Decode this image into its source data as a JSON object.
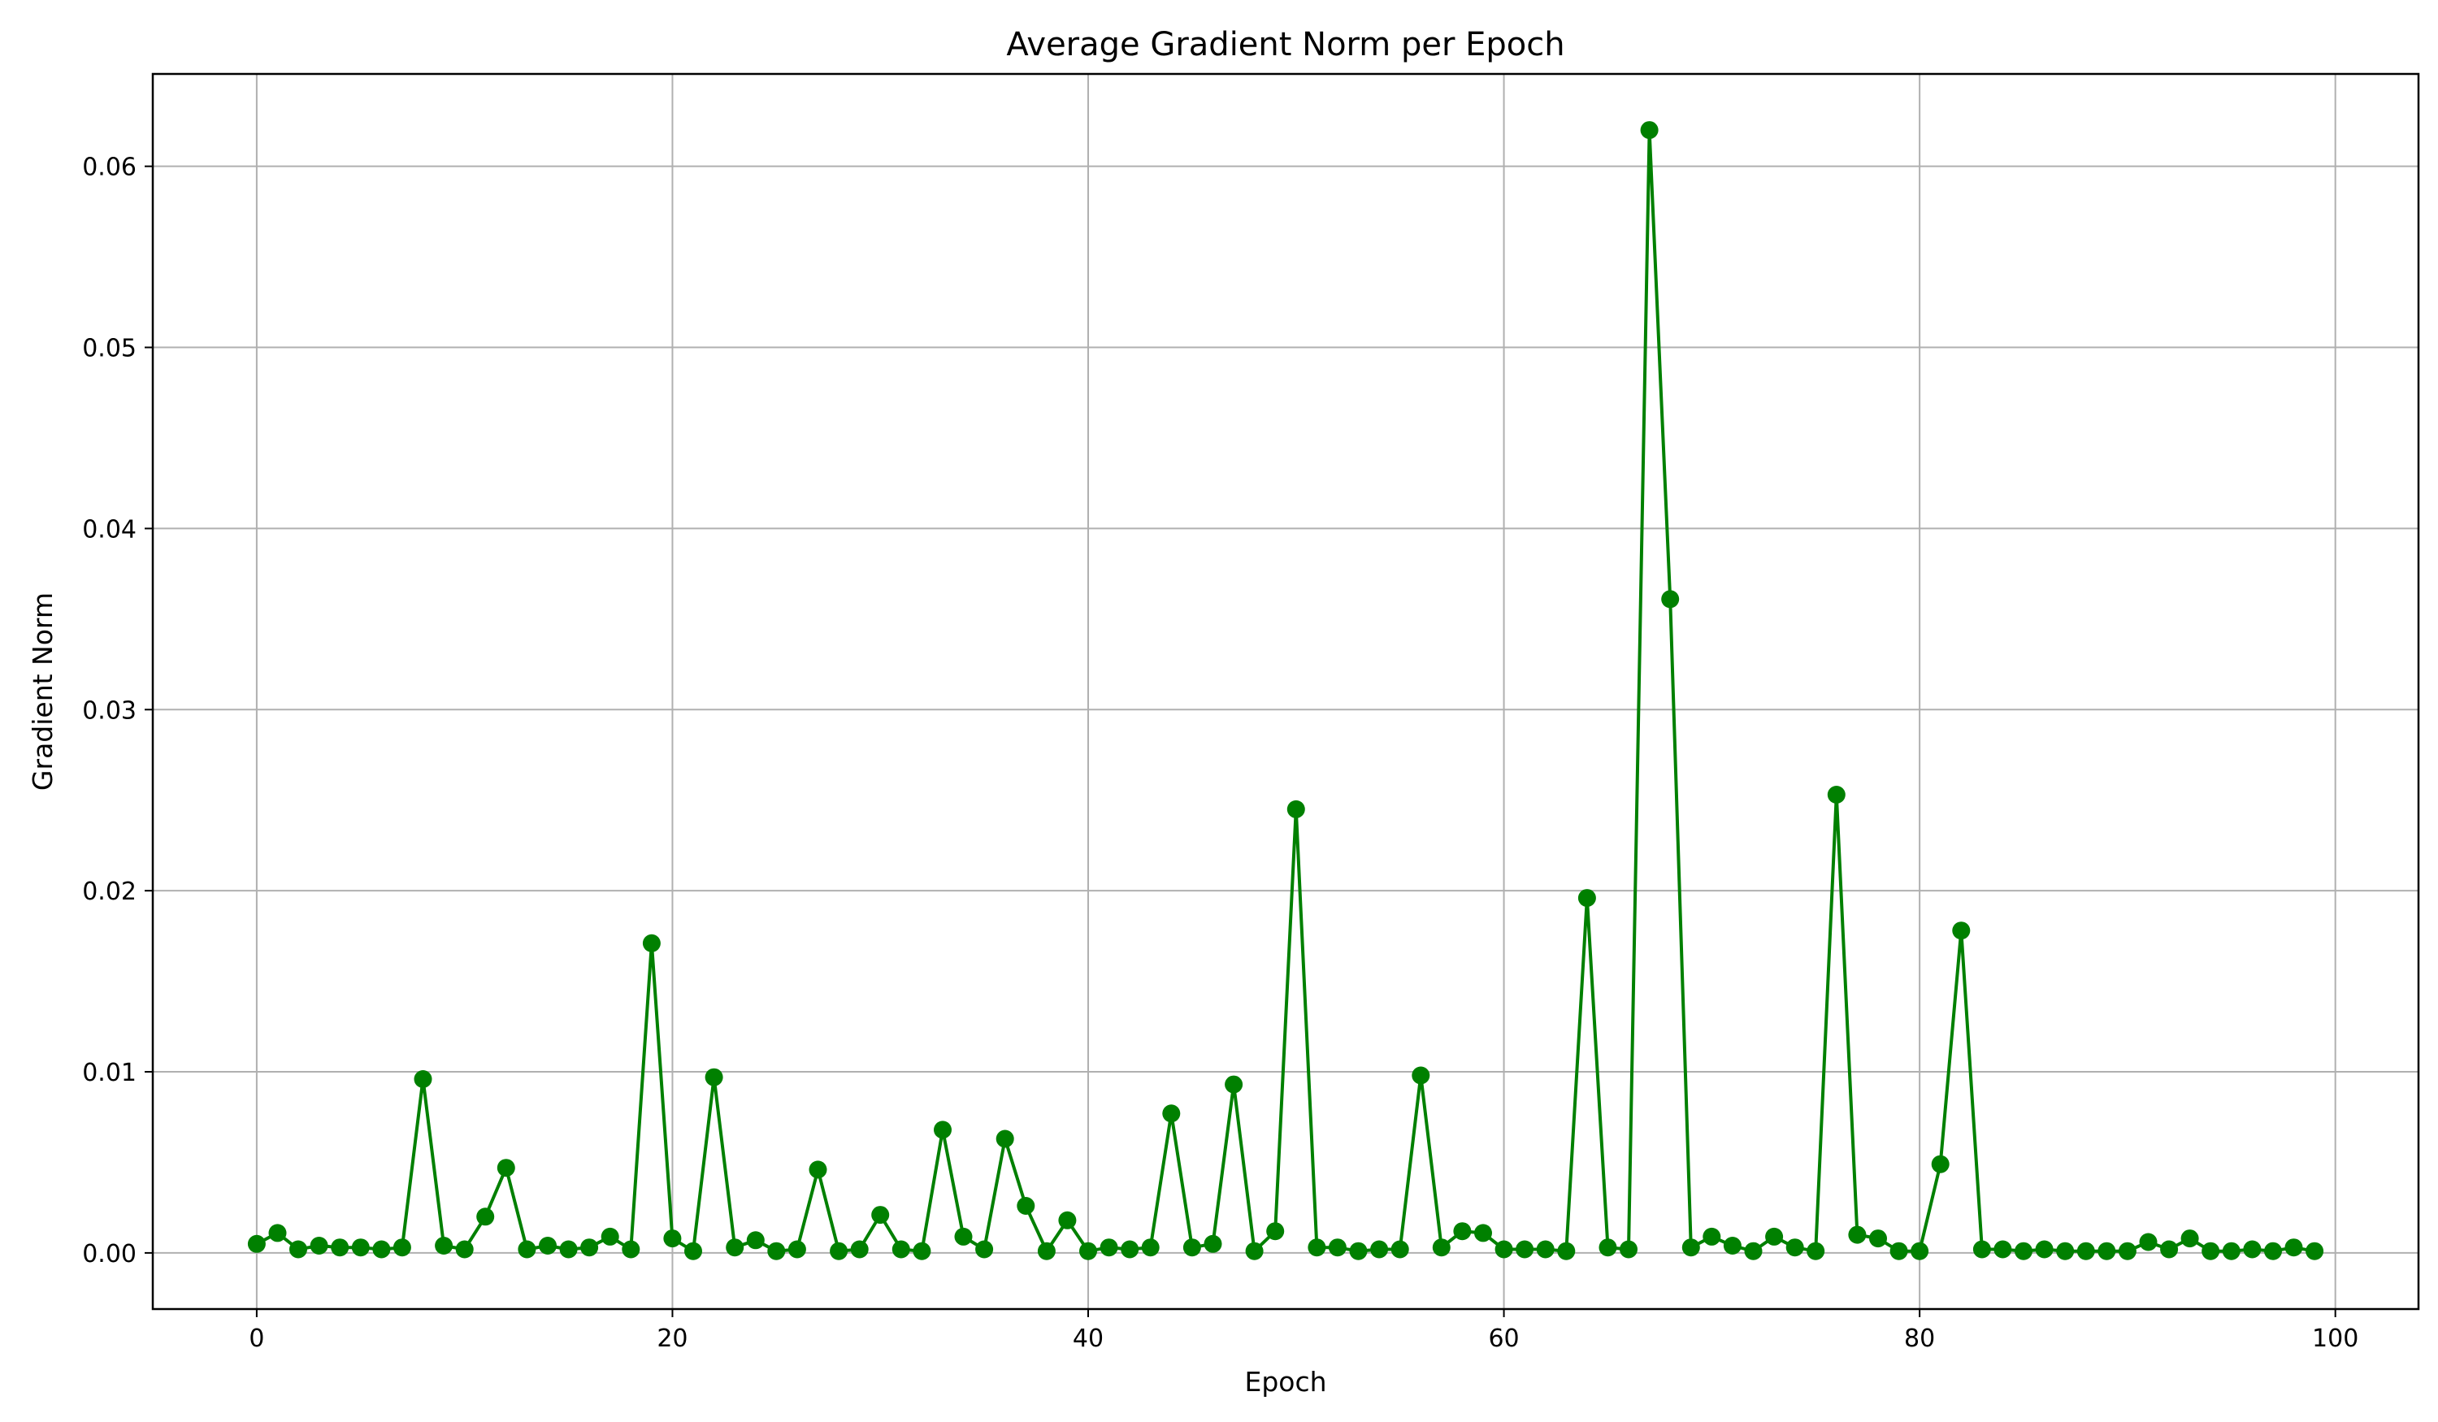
{
  "chart_data": {
    "type": "line",
    "title": "Average Gradient Norm per Epoch",
    "xlabel": "Epoch",
    "ylabel": "Gradient Norm",
    "xlim": [
      -5,
      104
    ],
    "ylim": [
      -0.0031,
      0.0651
    ],
    "xticks": [
      0,
      20,
      40,
      60,
      80,
      100
    ],
    "xtick_labels": [
      "0",
      "20",
      "40",
      "60",
      "80",
      "100"
    ],
    "yticks": [
      0.0,
      0.01,
      0.02,
      0.03,
      0.04,
      0.05,
      0.06
    ],
    "ytick_labels": [
      "0.00",
      "0.01",
      "0.02",
      "0.03",
      "0.04",
      "0.05",
      "0.06"
    ],
    "grid": true,
    "marker": "circle",
    "color": "#008000",
    "x": [
      0,
      1,
      2,
      3,
      4,
      5,
      6,
      7,
      8,
      9,
      10,
      11,
      12,
      13,
      14,
      15,
      16,
      17,
      18,
      19,
      20,
      21,
      22,
      23,
      24,
      25,
      26,
      27,
      28,
      29,
      30,
      31,
      32,
      33,
      34,
      35,
      36,
      37,
      38,
      39,
      40,
      41,
      42,
      43,
      44,
      45,
      46,
      47,
      48,
      49,
      50,
      51,
      52,
      53,
      54,
      55,
      56,
      57,
      58,
      59,
      60,
      61,
      62,
      63,
      64,
      65,
      66,
      67,
      68,
      69,
      70,
      71,
      72,
      73,
      74,
      75,
      76,
      77,
      78,
      79,
      80,
      81,
      82,
      83,
      84,
      85,
      86,
      87,
      88,
      89,
      90,
      91,
      92,
      93,
      94,
      95,
      96,
      97,
      98,
      99
    ],
    "y": [
      0.0005,
      0.0011,
      0.0002,
      0.0004,
      0.0003,
      0.0003,
      0.0002,
      0.0003,
      0.0096,
      0.0004,
      0.0002,
      0.002,
      0.0047,
      0.0002,
      0.0004,
      0.0002,
      0.0003,
      0.0009,
      0.0002,
      0.0171,
      0.0008,
      0.0001,
      0.0097,
      0.0003,
      0.0007,
      0.0001,
      0.0002,
      0.0046,
      0.0001,
      0.0002,
      0.0021,
      0.0002,
      0.0001,
      0.0068,
      0.0009,
      0.0002,
      0.0063,
      0.0026,
      0.0001,
      0.0018,
      0.0001,
      0.0003,
      0.0002,
      0.0003,
      0.0077,
      0.0003,
      0.0005,
      0.0093,
      0.0001,
      0.0012,
      0.0245,
      0.0003,
      0.0003,
      0.0001,
      0.0002,
      0.0002,
      0.0098,
      0.0003,
      0.0012,
      0.0011,
      0.0002,
      0.0002,
      0.0002,
      0.0001,
      0.0196,
      0.0003,
      0.0002,
      0.062,
      0.0361,
      0.0003,
      0.0009,
      0.0004,
      0.0001,
      0.0009,
      0.0003,
      0.0001,
      0.0253,
      0.001,
      0.0008,
      0.0001,
      0.0001,
      0.0049,
      0.0178,
      0.0002,
      0.0002,
      0.0001,
      0.0002,
      0.0001,
      0.0001,
      0.0001,
      0.0001,
      0.0006,
      0.0002,
      0.0008,
      0.0001,
      0.0001,
      0.0002,
      0.0001,
      0.0003,
      0.0001
    ]
  }
}
